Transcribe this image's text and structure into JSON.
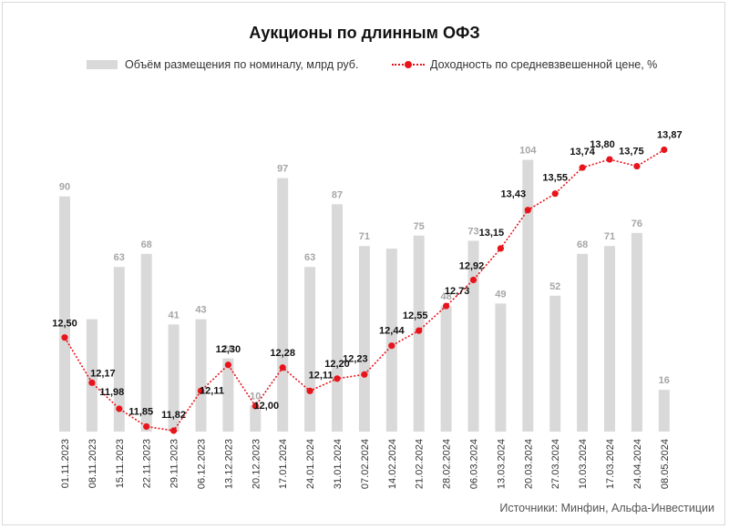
{
  "title": "Аукционы по длинным ОФЗ",
  "legend": {
    "bar_label": "Объём размещения по номиналу, млрд руб.",
    "line_label": "Доходность по средневзвешенной цене, %"
  },
  "source": "Источники: Минфин, Альфа-Инвестиции",
  "colors": {
    "bar": "#d9d9d9",
    "bar_label": "#a6a6a6",
    "line": "#e8141b"
  },
  "chart_data": {
    "type": "bar",
    "categories": [
      "01.11.2023",
      "08.11.2023",
      "15.11.2023",
      "22.11.2023",
      "29.11.2023",
      "06.12.2023",
      "13.12.2023",
      "20.12.2023",
      "17.01.2024",
      "24.01.2024",
      "31.01.2024",
      "07.02.2024",
      "14.02.2024",
      "21.02.2024",
      "28.02.2024",
      "06.03.2024",
      "13.03.2024",
      "20.03.2024",
      "27.03.2024",
      "10.03.2024",
      "17.03.2024",
      "24.04.2024",
      "08.05.2024"
    ],
    "series": [
      {
        "name": "Объём размещения по номиналу, млрд руб.",
        "type": "bar",
        "axis": "left",
        "values": [
          90,
          43,
          63,
          68,
          41,
          43,
          28,
          10,
          97,
          63,
          87,
          71,
          70,
          75,
          48,
          73,
          49,
          104,
          52,
          68,
          71,
          76,
          16
        ],
        "labels": [
          "90",
          null,
          "63",
          "68",
          "41",
          "43",
          "28",
          "10",
          "97",
          "63",
          "87",
          "71",
          null,
          "75",
          "48",
          "73",
          "49",
          "104",
          "52",
          "68",
          "71",
          "76",
          "16"
        ]
      },
      {
        "name": "Доходность по средневзвешенной цене, %",
        "type": "line",
        "axis": "right",
        "values": [
          12.5,
          12.17,
          11.98,
          11.85,
          11.82,
          12.11,
          12.3,
          12.0,
          12.28,
          12.11,
          12.2,
          12.23,
          12.44,
          12.55,
          12.73,
          12.92,
          13.15,
          13.43,
          13.55,
          13.74,
          13.8,
          13.75,
          13.87
        ],
        "labels": [
          "12,50",
          "12,17",
          "11,98",
          "11,85",
          "11,82",
          "12,11",
          "12,30",
          "12,00",
          "12,28",
          "12,11",
          "12,20",
          "12,23",
          "12,44",
          "12,55",
          "12,73",
          "12,92",
          "13,15",
          "13,43",
          "13,55",
          "13,74",
          "13,80",
          "13,75",
          "13,87"
        ]
      }
    ],
    "axes": {
      "left_range": [
        0,
        104
      ],
      "right_range": [
        11.8,
        13.9
      ],
      "gridlines": false,
      "axis_values_shown": false
    },
    "legend_position": "top"
  }
}
